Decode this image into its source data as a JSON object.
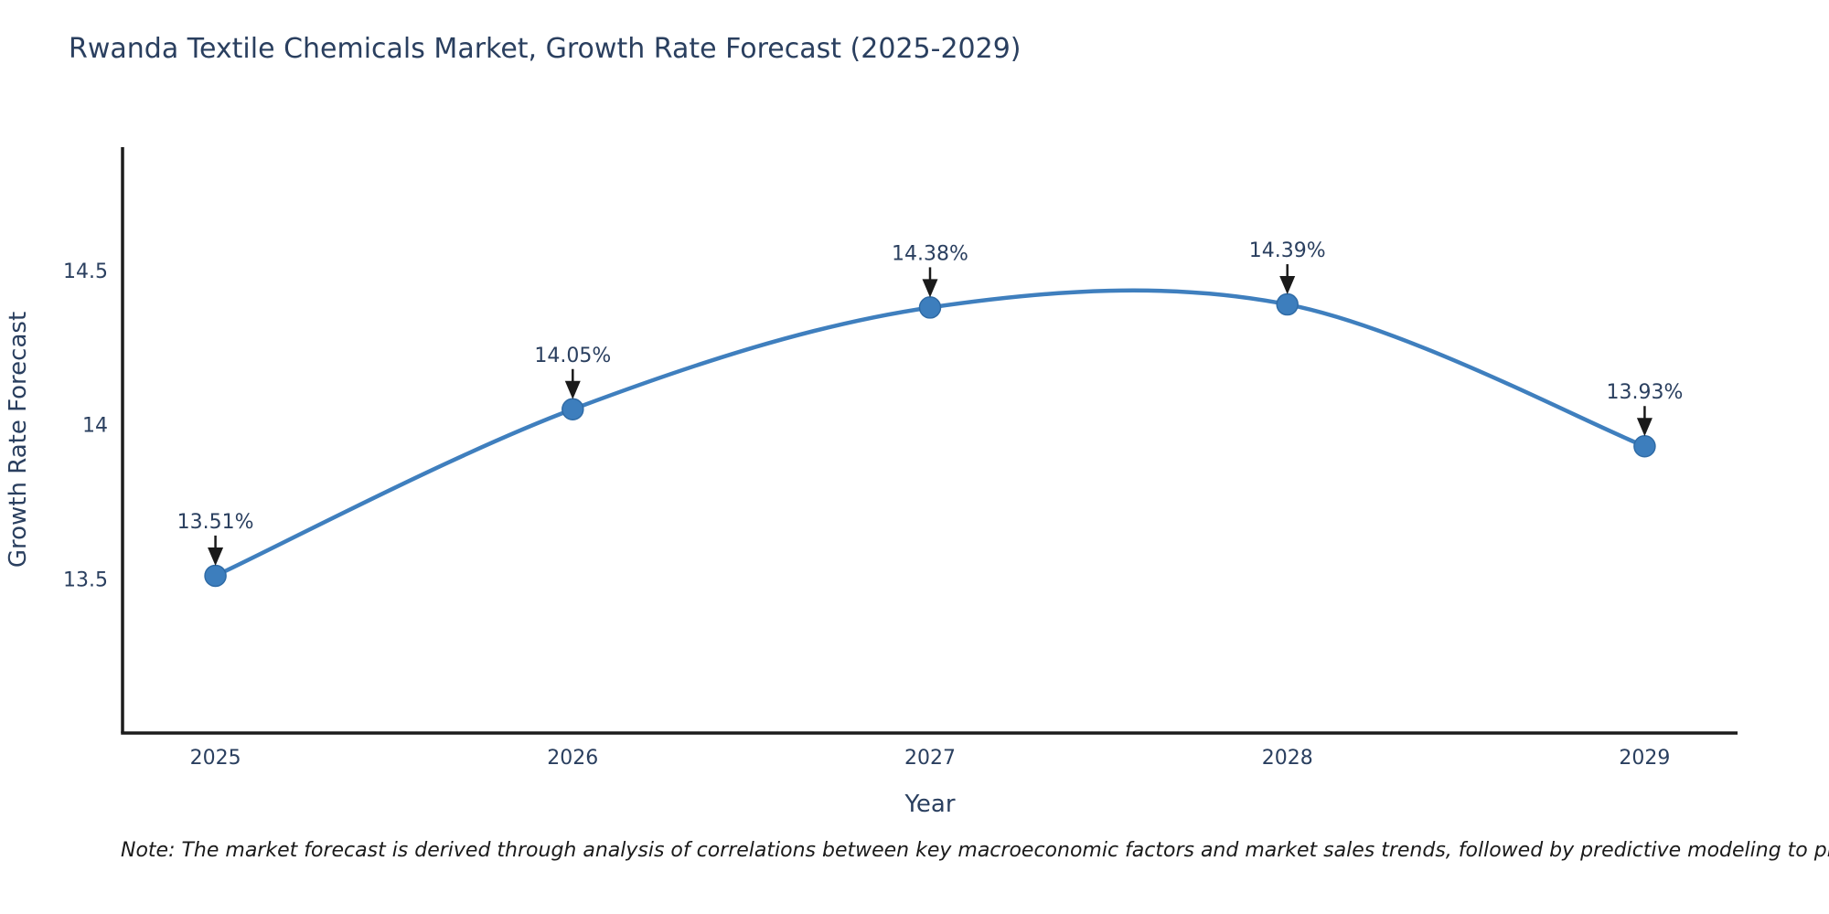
{
  "chart_data": {
    "type": "line",
    "title": "Rwanda Textile Chemicals Market, Growth Rate Forecast (2025-2029)",
    "xlabel": "Year",
    "ylabel": "Growth Rate Forecast",
    "x": [
      2025,
      2026,
      2027,
      2028,
      2029
    ],
    "values": [
      13.51,
      14.05,
      14.38,
      14.39,
      13.93
    ],
    "point_labels": [
      "13.51%",
      "14.05%",
      "14.38%",
      "14.39%",
      "13.93%"
    ],
    "xticks": [
      "2025",
      "2026",
      "2027",
      "2028",
      "2029"
    ],
    "yticks": [
      13.5,
      14,
      14.5
    ],
    "ytick_labels": [
      "13.5",
      "14",
      "14.5"
    ],
    "xlim": [
      2024.74,
      2029.26
    ],
    "ylim": [
      13.0,
      14.9
    ],
    "grid": false,
    "legend": false,
    "line_shape": "spline",
    "colors": {
      "line": "#3f7fbe",
      "marker_fill": "#3d7ebd",
      "marker_edge": "#2f6ba6",
      "axis": "#1c1c1c",
      "text": "#2a3f5f",
      "arrow": "#1a1a1a"
    },
    "note": "Note: The market forecast is derived through analysis of correlations between key macroeconomic factors and market sales trends, followed by predictive modeling to project future sal"
  }
}
